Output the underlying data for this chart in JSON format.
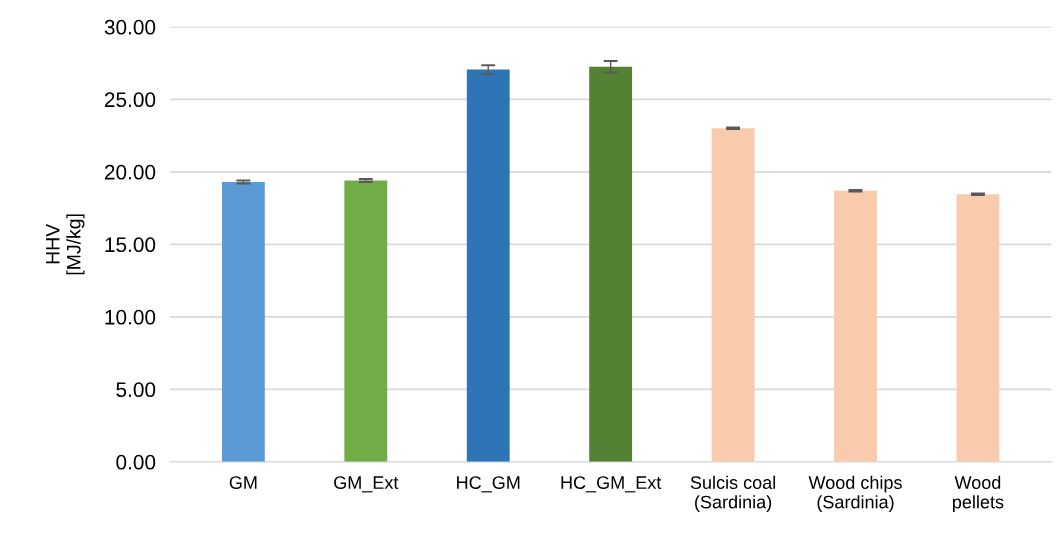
{
  "chart_data": {
    "type": "bar",
    "ylabel": "HHV\n[MJ/kg]",
    "categories": [
      "GM",
      "GM_Ext",
      "HC_GM",
      "HC_GM_Ext",
      "Sulcis coal\n(Sardinia)",
      "Wood chips\n(Sardinia)",
      "Wood\npellets"
    ],
    "values": [
      19.3,
      19.4,
      27.05,
      27.25,
      23.0,
      18.7,
      18.45
    ],
    "errors": [
      0.1,
      0.1,
      0.3,
      0.4,
      0.05,
      0.05,
      0.05
    ],
    "colors": [
      "#5b9bd5",
      "#70ad47",
      "#2e75b6",
      "#548235",
      "#f8cbad",
      "#f8cbad",
      "#f8cbad"
    ],
    "ylim": [
      0,
      30
    ],
    "yticks": [
      {
        "value": 0,
        "label": "0.00"
      },
      {
        "value": 5,
        "label": "5.00"
      },
      {
        "value": 10,
        "label": "10.00"
      },
      {
        "value": 15,
        "label": "15.00"
      },
      {
        "value": 20,
        "label": "20.00"
      },
      {
        "value": 25,
        "label": "25.00"
      },
      {
        "value": 30,
        "label": "30.00"
      }
    ],
    "grid": "y",
    "legend": false
  }
}
